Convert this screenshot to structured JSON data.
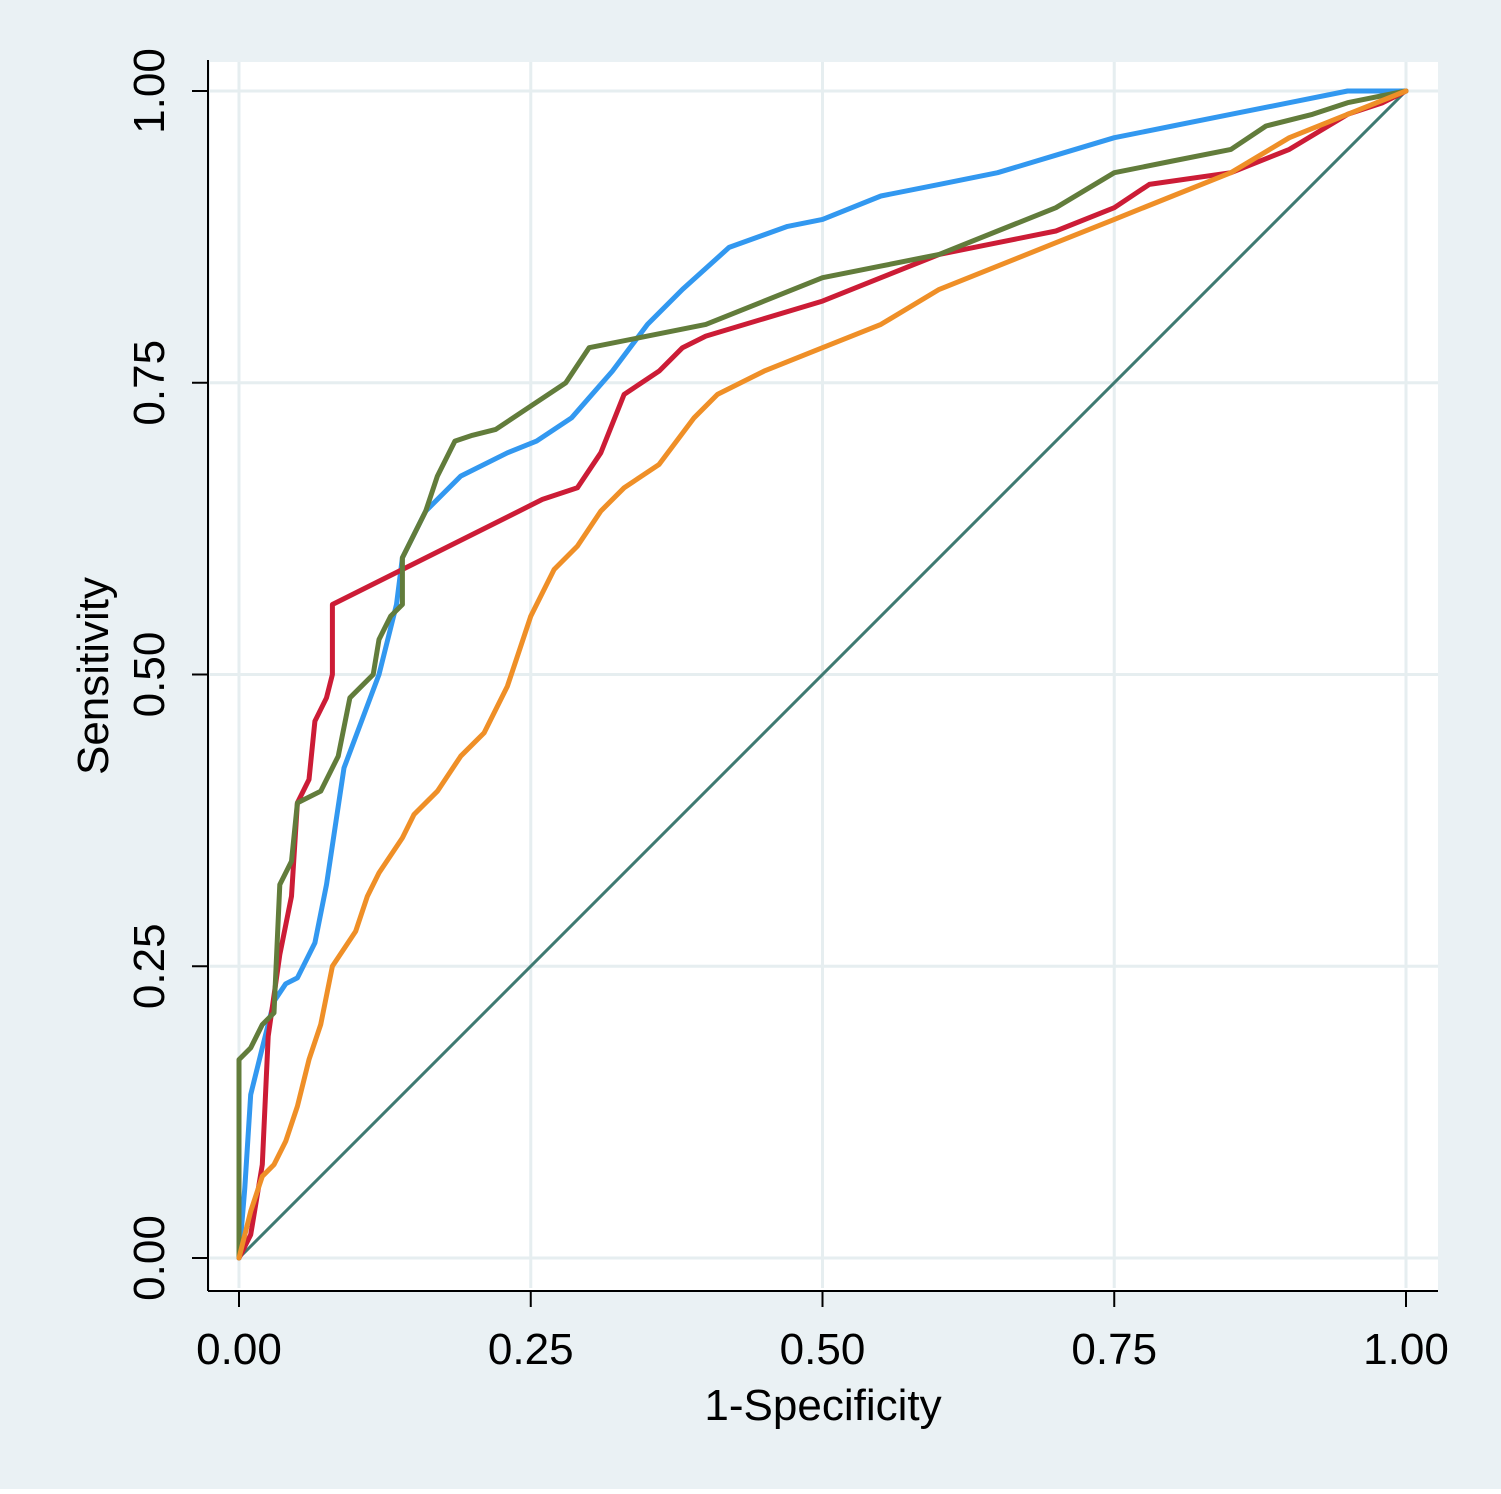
{
  "chart_data": {
    "type": "line",
    "title": "",
    "xlabel": "1-Specificity",
    "ylabel": "Sensitivity",
    "xlim": [
      0,
      1
    ],
    "ylim": [
      0,
      1
    ],
    "grid": true,
    "legend": "none",
    "x_ticks": [
      "0.00",
      "0.25",
      "0.50",
      "0.75",
      "1.00"
    ],
    "y_ticks": [
      "0.00",
      "0.25",
      "0.50",
      "0.75",
      "1.00"
    ],
    "colors": {
      "outer_background": "#eaf1f4",
      "plot_background": "#ffffff",
      "grid": "#e6eef0",
      "reference": "#3e7a72"
    },
    "series": [
      {
        "color": "#3298f0",
        "points": [
          [
            0,
            0
          ],
          [
            0.005,
            0.06
          ],
          [
            0.01,
            0.14
          ],
          [
            0.02,
            0.18
          ],
          [
            0.03,
            0.22
          ],
          [
            0.04,
            0.235
          ],
          [
            0.05,
            0.24
          ],
          [
            0.065,
            0.27
          ],
          [
            0.075,
            0.32
          ],
          [
            0.09,
            0.42
          ],
          [
            0.105,
            0.46
          ],
          [
            0.12,
            0.5
          ],
          [
            0.135,
            0.56
          ],
          [
            0.14,
            0.6
          ],
          [
            0.16,
            0.64
          ],
          [
            0.19,
            0.67
          ],
          [
            0.23,
            0.69
          ],
          [
            0.255,
            0.7
          ],
          [
            0.285,
            0.72
          ],
          [
            0.32,
            0.76
          ],
          [
            0.35,
            0.8
          ],
          [
            0.38,
            0.83
          ],
          [
            0.42,
            0.866
          ],
          [
            0.47,
            0.884
          ],
          [
            0.5,
            0.89
          ],
          [
            0.55,
            0.91
          ],
          [
            0.6,
            0.92
          ],
          [
            0.65,
            0.93
          ],
          [
            0.7,
            0.945
          ],
          [
            0.75,
            0.96
          ],
          [
            0.8,
            0.97
          ],
          [
            0.85,
            0.98
          ],
          [
            0.9,
            0.99
          ],
          [
            0.95,
            1
          ],
          [
            1,
            1
          ]
        ]
      },
      {
        "color": "#cc1c36",
        "points": [
          [
            0,
            0
          ],
          [
            0.01,
            0.02
          ],
          [
            0.02,
            0.08
          ],
          [
            0.025,
            0.19
          ],
          [
            0.035,
            0.26
          ],
          [
            0.045,
            0.31
          ],
          [
            0.05,
            0.39
          ],
          [
            0.06,
            0.41
          ],
          [
            0.065,
            0.46
          ],
          [
            0.075,
            0.48
          ],
          [
            0.08,
            0.5
          ],
          [
            0.08,
            0.56
          ],
          [
            0.24,
            0.64
          ],
          [
            0.26,
            0.65
          ],
          [
            0.29,
            0.66
          ],
          [
            0.31,
            0.69
          ],
          [
            0.33,
            0.74
          ],
          [
            0.36,
            0.76
          ],
          [
            0.38,
            0.78
          ],
          [
            0.4,
            0.79
          ],
          [
            0.5,
            0.82
          ],
          [
            0.55,
            0.84
          ],
          [
            0.6,
            0.86
          ],
          [
            0.65,
            0.87
          ],
          [
            0.7,
            0.88
          ],
          [
            0.75,
            0.9
          ],
          [
            0.78,
            0.92
          ],
          [
            0.85,
            0.93
          ],
          [
            0.9,
            0.95
          ],
          [
            0.95,
            0.98
          ],
          [
            0.98,
            0.99
          ],
          [
            1,
            1
          ]
        ]
      },
      {
        "color": "#627c3b",
        "points": [
          [
            0,
            0
          ],
          [
            0,
            0.17
          ],
          [
            0.01,
            0.18
          ],
          [
            0.02,
            0.2
          ],
          [
            0.03,
            0.21
          ],
          [
            0.035,
            0.32
          ],
          [
            0.045,
            0.34
          ],
          [
            0.05,
            0.39
          ],
          [
            0.07,
            0.4
          ],
          [
            0.085,
            0.43
          ],
          [
            0.095,
            0.48
          ],
          [
            0.115,
            0.5
          ],
          [
            0.12,
            0.53
          ],
          [
            0.13,
            0.55
          ],
          [
            0.14,
            0.56
          ],
          [
            0.14,
            0.6
          ],
          [
            0.16,
            0.64
          ],
          [
            0.17,
            0.67
          ],
          [
            0.185,
            0.7
          ],
          [
            0.2,
            0.705
          ],
          [
            0.22,
            0.71
          ],
          [
            0.25,
            0.73
          ],
          [
            0.28,
            0.75
          ],
          [
            0.3,
            0.78
          ],
          [
            0.35,
            0.79
          ],
          [
            0.4,
            0.8
          ],
          [
            0.45,
            0.82
          ],
          [
            0.5,
            0.84
          ],
          [
            0.55,
            0.85
          ],
          [
            0.6,
            0.86
          ],
          [
            0.65,
            0.88
          ],
          [
            0.7,
            0.9
          ],
          [
            0.75,
            0.93
          ],
          [
            0.8,
            0.94
          ],
          [
            0.85,
            0.95
          ],
          [
            0.88,
            0.97
          ],
          [
            0.92,
            0.98
          ],
          [
            0.95,
            0.99
          ],
          [
            1,
            1
          ]
        ]
      },
      {
        "color": "#ef8f27",
        "points": [
          [
            0,
            0
          ],
          [
            0.01,
            0.04
          ],
          [
            0.02,
            0.07
          ],
          [
            0.03,
            0.08
          ],
          [
            0.04,
            0.1
          ],
          [
            0.05,
            0.13
          ],
          [
            0.06,
            0.17
          ],
          [
            0.07,
            0.2
          ],
          [
            0.08,
            0.25
          ],
          [
            0.1,
            0.28
          ],
          [
            0.11,
            0.31
          ],
          [
            0.12,
            0.33
          ],
          [
            0.14,
            0.36
          ],
          [
            0.15,
            0.38
          ],
          [
            0.17,
            0.4
          ],
          [
            0.19,
            0.43
          ],
          [
            0.21,
            0.45
          ],
          [
            0.23,
            0.49
          ],
          [
            0.24,
            0.52
          ],
          [
            0.25,
            0.55
          ],
          [
            0.27,
            0.59
          ],
          [
            0.29,
            0.61
          ],
          [
            0.31,
            0.64
          ],
          [
            0.33,
            0.66
          ],
          [
            0.36,
            0.68
          ],
          [
            0.39,
            0.72
          ],
          [
            0.41,
            0.74
          ],
          [
            0.45,
            0.76
          ],
          [
            0.5,
            0.78
          ],
          [
            0.55,
            0.8
          ],
          [
            0.6,
            0.83
          ],
          [
            0.65,
            0.85
          ],
          [
            0.7,
            0.87
          ],
          [
            0.75,
            0.89
          ],
          [
            0.8,
            0.91
          ],
          [
            0.85,
            0.93
          ],
          [
            0.9,
            0.96
          ],
          [
            0.95,
            0.98
          ],
          [
            1,
            1
          ]
        ]
      },
      {
        "color": "#3e7a72",
        "reference": true,
        "points": [
          [
            0,
            0
          ],
          [
            1,
            1
          ]
        ]
      }
    ]
  }
}
